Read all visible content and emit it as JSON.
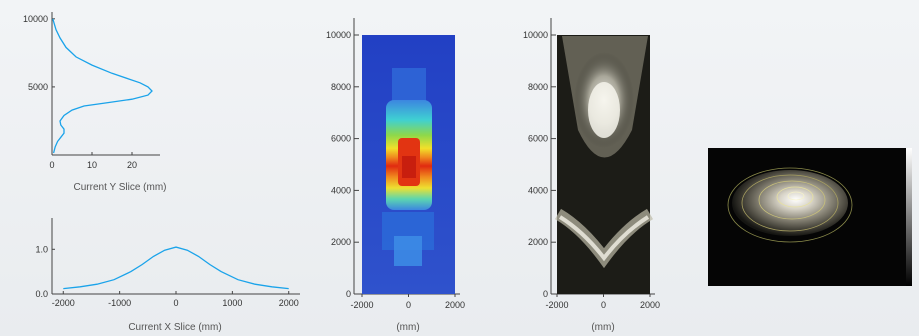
{
  "chart_data": [
    {
      "type": "line",
      "name_id": "y-slice",
      "xlabel": "Current Y Slice (mm)",
      "ylabel": "",
      "xlim": [
        0,
        27
      ],
      "ylim": [
        0,
        10500
      ],
      "xticks": [
        0,
        10,
        20
      ],
      "yticks": [
        5000,
        10000
      ],
      "points": [
        [
          0.2,
          10000
        ],
        [
          0.5,
          9700
        ],
        [
          1,
          9200
        ],
        [
          2,
          8600
        ],
        [
          3.5,
          7900
        ],
        [
          6,
          7200
        ],
        [
          10,
          6600
        ],
        [
          15,
          6000
        ],
        [
          19,
          5600
        ],
        [
          22,
          5300
        ],
        [
          24,
          5000
        ],
        [
          25,
          4700
        ],
        [
          24,
          4400
        ],
        [
          20,
          4100
        ],
        [
          14,
          3850
        ],
        [
          8,
          3600
        ],
        [
          5,
          3300
        ],
        [
          3,
          2900
        ],
        [
          2,
          2500
        ],
        [
          2.2,
          2200
        ],
        [
          3,
          1900
        ],
        [
          3,
          1600
        ],
        [
          2.2,
          1300
        ],
        [
          1.4,
          1000
        ],
        [
          0.8,
          600
        ],
        [
          0.4,
          150
        ]
      ]
    },
    {
      "type": "line",
      "name_id": "x-slice",
      "xlabel": "Current X Slice (mm)",
      "ylabel": "",
      "xlim": [
        -2200,
        2200
      ],
      "ylim": [
        0,
        1.7
      ],
      "xticks": [
        -2000,
        -1000,
        0,
        1000,
        2000
      ],
      "yticks": [
        0.0,
        1.0
      ],
      "tick_labels_x": [
        "-2000",
        "-1000",
        "0",
        "1000",
        "2000"
      ],
      "tick_labels_y": [
        "0.0",
        "1.0"
      ],
      "points": [
        [
          -2000,
          0.12
        ],
        [
          -1700,
          0.16
        ],
        [
          -1400,
          0.22
        ],
        [
          -1100,
          0.32
        ],
        [
          -800,
          0.5
        ],
        [
          -600,
          0.66
        ],
        [
          -400,
          0.84
        ],
        [
          -200,
          0.98
        ],
        [
          0,
          1.05
        ],
        [
          200,
          0.98
        ],
        [
          400,
          0.84
        ],
        [
          600,
          0.66
        ],
        [
          800,
          0.5
        ],
        [
          1100,
          0.32
        ],
        [
          1400,
          0.22
        ],
        [
          1700,
          0.16
        ],
        [
          2000,
          0.12
        ]
      ]
    },
    {
      "type": "heatmap",
      "name_id": "heatmap-jet",
      "xlabel": "(mm)",
      "xlim": [
        -2000,
        2000
      ],
      "ylim": [
        0,
        10000
      ],
      "xticks": [
        -2000,
        0,
        2000
      ],
      "yticks": [
        0,
        2000,
        4000,
        6000,
        8000,
        10000
      ],
      "colormap": "jet"
    },
    {
      "type": "heatmap",
      "name_id": "heatmap-gray",
      "xlabel": "(mm)",
      "xlim": [
        -2000,
        2000
      ],
      "ylim": [
        0,
        10000
      ],
      "xticks": [
        -2000,
        0,
        2000
      ],
      "yticks": [
        0,
        2000,
        4000,
        6000,
        8000,
        10000
      ],
      "colormap": "gray"
    },
    {
      "type": "heatmap",
      "name_id": "contour-gray",
      "colormap": "gray-contour"
    }
  ],
  "colors": {
    "curve": "#1aa3ea",
    "jet_low": "#1f3fbf",
    "jet_high": "#e02010",
    "background": "#eef0f2"
  }
}
